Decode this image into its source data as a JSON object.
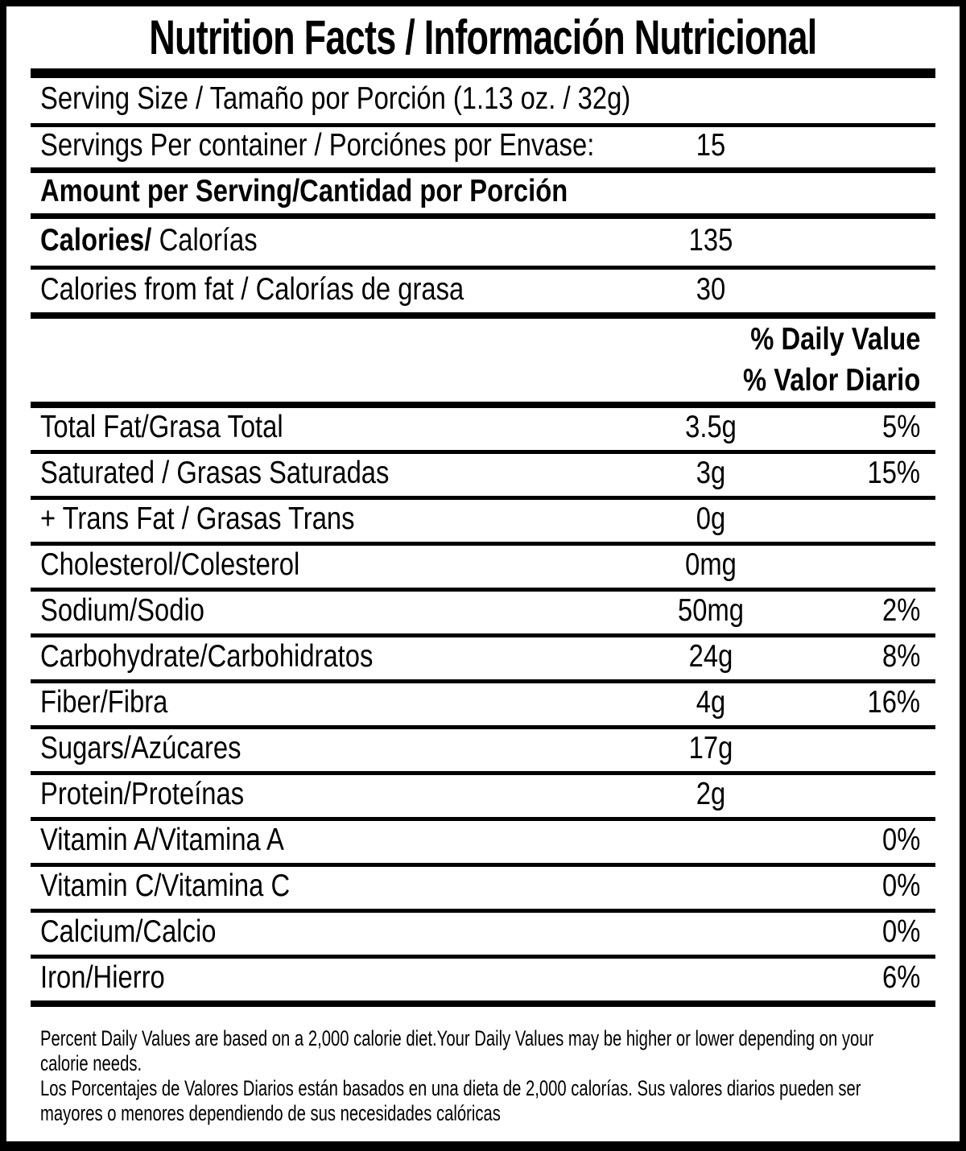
{
  "label": {
    "title": "Nutrition Facts / Información Nutricional",
    "serving_size": "Serving Size / Tamaño por Porción (1.13 oz. / 32g)",
    "servings_per_container": {
      "label": "Servings Per container / Porciónes por Envase:",
      "value": "15"
    },
    "amount_header": "Amount per Serving/Cantidad por Porción",
    "calories": {
      "label_en": "Calories/",
      "label_es": "Calorías",
      "value": "135"
    },
    "calories_from_fat": {
      "label": "Calories from fat / Calorías de grasa",
      "value": "30"
    },
    "daily_value_header_en": "% Daily Value",
    "daily_value_header_es": "% Valor Diario",
    "nutrients": [
      {
        "label": "Total Fat/Grasa Total",
        "amount": "3.5g",
        "dv": "5%"
      },
      {
        "label": "Saturated / Grasas Saturadas",
        "amount": "3g",
        "dv": "15%"
      },
      {
        "label": "+ Trans Fat / Grasas Trans",
        "amount": "0g",
        "dv": ""
      },
      {
        "label": "Cholesterol/Colesterol",
        "amount": "0mg",
        "dv": ""
      },
      {
        "label": "Sodium/Sodio",
        "amount": "50mg",
        "dv": "2%"
      },
      {
        "label": "Carbohydrate/Carbohidratos",
        "amount": "24g",
        "dv": "8%"
      },
      {
        "label": "Fiber/Fibra",
        "amount": "4g",
        "dv": "16%"
      },
      {
        "label": "Sugars/Azúcares",
        "amount": "17g",
        "dv": ""
      },
      {
        "label": "Protein/Proteínas",
        "amount": "2g",
        "dv": ""
      },
      {
        "label": "Vitamin A/Vitamina A",
        "amount": "",
        "dv": "0%"
      },
      {
        "label": "Vitamin C/Vitamina C",
        "amount": "",
        "dv": "0%"
      },
      {
        "label": "Calcium/Calcio",
        "amount": "",
        "dv": "0%"
      },
      {
        "label": "Iron/Hierro",
        "amount": "",
        "dv": "6%"
      }
    ],
    "footnote_en": "Percent Daily Values are based on a 2,000 calorie diet.Your Daily Values may be higher or lower depending on your\ncalorie needs.",
    "footnote_es": "Los Porcentajes de Valores Diarios están basados en una dieta de 2,000 calorías. Sus valores diarios pueden ser\nmayores o menores dependiendo de sus necesidades calóricas"
  }
}
